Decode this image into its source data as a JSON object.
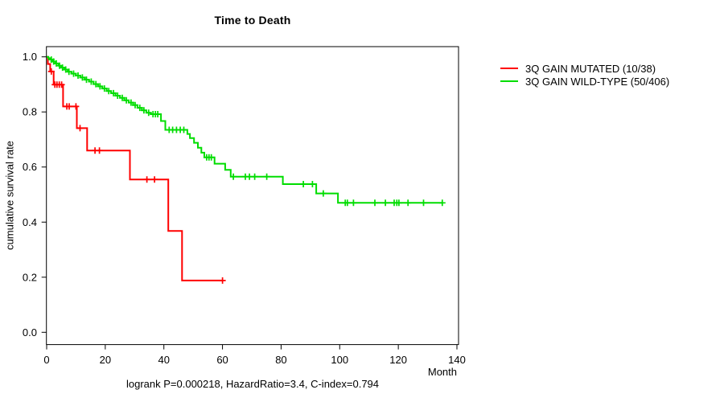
{
  "title": "Time to Death",
  "footer_stats": "logrank P=0.000218, HazardRatio=3.4, C-index=0.794",
  "legend": {
    "items": [
      {
        "label": "3Q GAIN MUTATED (10/38)",
        "color": "#ff0000"
      },
      {
        "label": "3Q GAIN WILD-TYPE (50/406)",
        "color": "#00dd00"
      }
    ]
  },
  "chart_data": {
    "type": "line",
    "subtype": "kaplan-meier-step",
    "title": "Time to Death",
    "xlabel": "Month",
    "ylabel": "cumulative survival rate",
    "xlim": [
      0,
      140
    ],
    "ylim": [
      0.0,
      1.0
    ],
    "xticks": [
      0,
      20,
      40,
      60,
      80,
      100,
      120,
      140
    ],
    "yticks": [
      {
        "label": "0.0",
        "value": 0.0
      },
      {
        "label": "0.2",
        "value": 0.2
      },
      {
        "label": "0.4",
        "value": 0.4
      },
      {
        "label": "0.6",
        "value": 0.6
      },
      {
        "label": "0.8",
        "value": 0.8
      },
      {
        "label": "1.0",
        "value": 1.0
      }
    ],
    "grid": false,
    "legend_position": "right-outside",
    "annotation": "logrank P=0.000218, HazardRatio=3.4, C-index=0.794",
    "series": [
      {
        "name": "3Q GAIN MUTATED (10/38)",
        "color": "#ff0000",
        "steps": [
          [
            0,
            1.0
          ],
          [
            0.4,
            0.974
          ],
          [
            1.2,
            0.947
          ],
          [
            2.4,
            0.899
          ],
          [
            5.6,
            0.82
          ],
          [
            10.3,
            0.741
          ],
          [
            13.8,
            0.66
          ],
          [
            28.4,
            0.555
          ],
          [
            41.5,
            0.368
          ],
          [
            46.2,
            0.188
          ]
        ],
        "end_month": 60,
        "censors": [
          [
            1.6,
            0.947
          ],
          [
            2.8,
            0.899
          ],
          [
            3.5,
            0.899
          ],
          [
            4.3,
            0.899
          ],
          [
            5.1,
            0.899
          ],
          [
            6.9,
            0.82
          ],
          [
            7.7,
            0.82
          ],
          [
            10.0,
            0.82
          ],
          [
            11.4,
            0.741
          ],
          [
            16.5,
            0.66
          ],
          [
            18.0,
            0.66
          ],
          [
            34.2,
            0.555
          ],
          [
            36.8,
            0.555
          ],
          [
            60,
            0.188
          ]
        ]
      },
      {
        "name": "3Q GAIN WILD-TYPE (50/406)",
        "color": "#00dd00",
        "steps": [
          [
            0,
            1.0
          ],
          [
            0.6,
            0.995
          ],
          [
            1.2,
            0.99
          ],
          [
            2,
            0.983
          ],
          [
            3,
            0.976
          ],
          [
            4,
            0.968
          ],
          [
            5,
            0.961
          ],
          [
            6,
            0.954
          ],
          [
            7.2,
            0.946
          ],
          [
            8.5,
            0.939
          ],
          [
            10,
            0.932
          ],
          [
            11.5,
            0.925
          ],
          [
            13,
            0.917
          ],
          [
            14.5,
            0.91
          ],
          [
            16,
            0.901
          ],
          [
            17.5,
            0.893
          ],
          [
            19,
            0.885
          ],
          [
            20.5,
            0.876
          ],
          [
            22,
            0.868
          ],
          [
            23.5,
            0.859
          ],
          [
            25,
            0.851
          ],
          [
            26.5,
            0.842
          ],
          [
            28,
            0.834
          ],
          [
            29.5,
            0.825
          ],
          [
            31,
            0.815
          ],
          [
            32.5,
            0.806
          ],
          [
            34,
            0.797
          ],
          [
            35.5,
            0.792
          ],
          [
            39,
            0.767
          ],
          [
            40.5,
            0.735
          ],
          [
            48,
            0.72
          ],
          [
            48.9,
            0.705
          ],
          [
            50.3,
            0.688
          ],
          [
            51.6,
            0.67
          ],
          [
            52.8,
            0.652
          ],
          [
            53.8,
            0.635
          ],
          [
            57.3,
            0.612
          ],
          [
            60.9,
            0.59
          ],
          [
            62.8,
            0.565
          ],
          [
            80.6,
            0.538
          ],
          [
            92,
            0.504
          ],
          [
            99.4,
            0.47
          ]
        ],
        "end_month": 135,
        "censors": [
          [
            1.6,
            0.99
          ],
          [
            2.4,
            0.983
          ],
          [
            3.3,
            0.976
          ],
          [
            4.4,
            0.968
          ],
          [
            5.4,
            0.961
          ],
          [
            6.5,
            0.954
          ],
          [
            7.6,
            0.946
          ],
          [
            9.2,
            0.939
          ],
          [
            10.7,
            0.932
          ],
          [
            12.2,
            0.925
          ],
          [
            13.6,
            0.917
          ],
          [
            15.2,
            0.91
          ],
          [
            16.8,
            0.901
          ],
          [
            18.2,
            0.893
          ],
          [
            19.7,
            0.885
          ],
          [
            21.2,
            0.876
          ],
          [
            22.8,
            0.868
          ],
          [
            24.2,
            0.859
          ],
          [
            25.8,
            0.851
          ],
          [
            27.2,
            0.842
          ],
          [
            28.8,
            0.834
          ],
          [
            30.2,
            0.825
          ],
          [
            31.8,
            0.815
          ],
          [
            33.2,
            0.806
          ],
          [
            34.8,
            0.797
          ],
          [
            36.3,
            0.792
          ],
          [
            37.1,
            0.792
          ],
          [
            37.9,
            0.792
          ],
          [
            41.8,
            0.735
          ],
          [
            43.0,
            0.735
          ],
          [
            44.3,
            0.735
          ],
          [
            45.6,
            0.735
          ],
          [
            46.8,
            0.735
          ],
          [
            54.6,
            0.635
          ],
          [
            55.4,
            0.635
          ],
          [
            56.2,
            0.635
          ],
          [
            63.7,
            0.565
          ],
          [
            67.8,
            0.565
          ],
          [
            69.2,
            0.565
          ],
          [
            71.0,
            0.565
          ],
          [
            75.1,
            0.565
          ],
          [
            87.6,
            0.538
          ],
          [
            90.7,
            0.538
          ],
          [
            94.4,
            0.504
          ],
          [
            101.9,
            0.47
          ],
          [
            102.6,
            0.47
          ],
          [
            104.7,
            0.47
          ],
          [
            112.0,
            0.47
          ],
          [
            115.6,
            0.47
          ],
          [
            118.6,
            0.47
          ],
          [
            119.5,
            0.47
          ],
          [
            120.2,
            0.47
          ],
          [
            123.3,
            0.47
          ],
          [
            128.6,
            0.47
          ],
          [
            135,
            0.47
          ]
        ]
      }
    ]
  }
}
